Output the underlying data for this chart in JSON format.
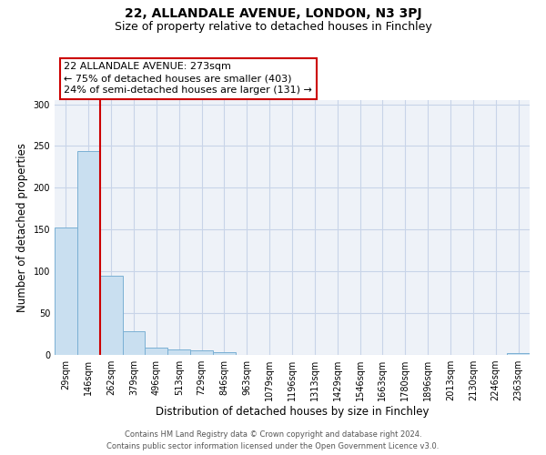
{
  "title1": "22, ALLANDALE AVENUE, LONDON, N3 3PJ",
  "title2": "Size of property relative to detached houses in Finchley",
  "xlabel": "Distribution of detached houses by size in Finchley",
  "ylabel": "Number of detached properties",
  "bar_labels": [
    "29sqm",
    "146sqm",
    "262sqm",
    "379sqm",
    "496sqm",
    "513sqm",
    "729sqm",
    "846sqm",
    "963sqm",
    "1079sqm",
    "1196sqm",
    "1313sqm",
    "1429sqm",
    "1546sqm",
    "1663sqm",
    "1780sqm",
    "1896sqm",
    "2013sqm",
    "2130sqm",
    "2246sqm",
    "2363sqm"
  ],
  "bar_values": [
    152,
    244,
    95,
    28,
    9,
    7,
    5,
    3,
    0,
    0,
    0,
    0,
    0,
    0,
    0,
    0,
    0,
    0,
    0,
    0,
    2
  ],
  "bar_color": "#c9dff0",
  "bar_edge_color": "#7ab0d4",
  "vline_x": 1.5,
  "vline_color": "#cc0000",
  "annotation_text": "22 ALLANDALE AVENUE: 273sqm\n← 75% of detached houses are smaller (403)\n24% of semi-detached houses are larger (131) →",
  "annotation_box_color": "#ffffff",
  "annotation_box_edge_color": "#cc0000",
  "ylim": [
    0,
    305
  ],
  "yticks": [
    0,
    50,
    100,
    150,
    200,
    250,
    300
  ],
  "grid_color": "#c8d4e8",
  "bg_color": "#eef2f8",
  "footer1": "Contains HM Land Registry data © Crown copyright and database right 2024.",
  "footer2": "Contains public sector information licensed under the Open Government Licence v3.0.",
  "title1_fontsize": 10,
  "title2_fontsize": 9,
  "xlabel_fontsize": 8.5,
  "ylabel_fontsize": 8.5,
  "tick_fontsize": 7,
  "footer_fontsize": 6,
  "ann_fontsize": 8
}
